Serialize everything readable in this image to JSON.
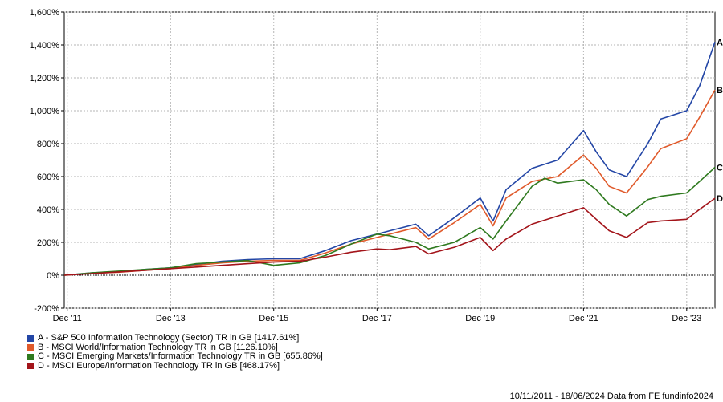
{
  "chart_data": {
    "type": "line",
    "x_start": "2011-11-10",
    "x_end": "2024-06-18",
    "x_ticks": [
      {
        "label": "Dec '11",
        "date": "2011-12-01"
      },
      {
        "label": "Dec '13",
        "date": "2013-12-01"
      },
      {
        "label": "Dec '15",
        "date": "2015-12-01"
      },
      {
        "label": "Dec '17",
        "date": "2017-12-01"
      },
      {
        "label": "Dec '19",
        "date": "2019-12-01"
      },
      {
        "label": "Dec '21",
        "date": "2021-12-01"
      },
      {
        "label": "Dec '23",
        "date": "2023-12-01"
      }
    ],
    "y_ticks": [
      {
        "label": "-200%",
        "value": -200
      },
      {
        "label": "0%",
        "value": 0
      },
      {
        "label": "200%",
        "value": 200
      },
      {
        "label": "400%",
        "value": 400
      },
      {
        "label": "600%",
        "value": 600
      },
      {
        "label": "800%",
        "value": 800
      },
      {
        "label": "1,000%",
        "value": 1000
      },
      {
        "label": "1,200%",
        "value": 1200
      },
      {
        "label": "1,400%",
        "value": 1400
      },
      {
        "label": "1,600%",
        "value": 1600
      }
    ],
    "ylim": [
      -200,
      1600
    ],
    "grid": true,
    "legend_position": "bottom-left",
    "series": [
      {
        "id": "A",
        "name": "A - S&P 500 Information Technology (Sector) TR in GB [1417.61%]",
        "color": "#2346a6",
        "points": [
          [
            "2011-11-10",
            0
          ],
          [
            "2012-06-01",
            15
          ],
          [
            "2012-12-01",
            20
          ],
          [
            "2013-06-01",
            35
          ],
          [
            "2013-12-01",
            45
          ],
          [
            "2014-06-01",
            65
          ],
          [
            "2014-12-01",
            85
          ],
          [
            "2015-06-01",
            95
          ],
          [
            "2015-12-01",
            100
          ],
          [
            "2016-06-01",
            100
          ],
          [
            "2016-12-01",
            150
          ],
          [
            "2017-06-01",
            210
          ],
          [
            "2017-12-01",
            250
          ],
          [
            "2018-03-01",
            270
          ],
          [
            "2018-09-01",
            310
          ],
          [
            "2018-12-01",
            240
          ],
          [
            "2019-06-01",
            350
          ],
          [
            "2019-12-01",
            470
          ],
          [
            "2020-03-01",
            330
          ],
          [
            "2020-06-01",
            520
          ],
          [
            "2020-12-01",
            650
          ],
          [
            "2021-06-01",
            700
          ],
          [
            "2021-12-01",
            880
          ],
          [
            "2022-03-01",
            750
          ],
          [
            "2022-06-01",
            640
          ],
          [
            "2022-10-01",
            600
          ],
          [
            "2023-03-01",
            800
          ],
          [
            "2023-06-01",
            950
          ],
          [
            "2023-12-01",
            1000
          ],
          [
            "2024-03-01",
            1150
          ],
          [
            "2024-06-18",
            1418
          ]
        ]
      },
      {
        "id": "B",
        "name": "B - MSCI World/Information Technology TR in GB [1126.10%]",
        "color": "#e05a2b",
        "points": [
          [
            "2011-11-10",
            0
          ],
          [
            "2012-06-01",
            12
          ],
          [
            "2012-12-01",
            18
          ],
          [
            "2013-06-01",
            30
          ],
          [
            "2013-12-01",
            40
          ],
          [
            "2014-06-01",
            60
          ],
          [
            "2014-12-01",
            75
          ],
          [
            "2015-06-01",
            85
          ],
          [
            "2015-12-01",
            90
          ],
          [
            "2016-06-01",
            90
          ],
          [
            "2016-12-01",
            135
          ],
          [
            "2017-06-01",
            190
          ],
          [
            "2017-12-01",
            230
          ],
          [
            "2018-03-01",
            250
          ],
          [
            "2018-09-01",
            290
          ],
          [
            "2018-12-01",
            220
          ],
          [
            "2019-06-01",
            320
          ],
          [
            "2019-12-01",
            430
          ],
          [
            "2020-03-01",
            300
          ],
          [
            "2020-06-01",
            470
          ],
          [
            "2020-12-01",
            570
          ],
          [
            "2021-06-01",
            600
          ],
          [
            "2021-12-01",
            730
          ],
          [
            "2022-03-01",
            650
          ],
          [
            "2022-06-01",
            540
          ],
          [
            "2022-10-01",
            500
          ],
          [
            "2023-03-01",
            660
          ],
          [
            "2023-06-01",
            770
          ],
          [
            "2023-12-01",
            830
          ],
          [
            "2024-03-01",
            960
          ],
          [
            "2024-06-18",
            1126
          ]
        ]
      },
      {
        "id": "C",
        "name": "C - MSCI Emerging Markets/Information Technology TR in GB [655.86%]",
        "color": "#2f7a1f",
        "points": [
          [
            "2011-11-10",
            0
          ],
          [
            "2012-06-01",
            15
          ],
          [
            "2012-12-01",
            25
          ],
          [
            "2013-06-01",
            35
          ],
          [
            "2013-12-01",
            45
          ],
          [
            "2014-06-01",
            70
          ],
          [
            "2014-12-01",
            80
          ],
          [
            "2015-06-01",
            90
          ],
          [
            "2015-12-01",
            60
          ],
          [
            "2016-06-01",
            75
          ],
          [
            "2016-12-01",
            120
          ],
          [
            "2017-06-01",
            190
          ],
          [
            "2017-12-01",
            250
          ],
          [
            "2018-03-01",
            240
          ],
          [
            "2018-09-01",
            200
          ],
          [
            "2018-12-01",
            160
          ],
          [
            "2019-06-01",
            200
          ],
          [
            "2019-12-01",
            290
          ],
          [
            "2020-03-01",
            220
          ],
          [
            "2020-06-01",
            330
          ],
          [
            "2020-12-01",
            540
          ],
          [
            "2021-03-01",
            590
          ],
          [
            "2021-06-01",
            560
          ],
          [
            "2021-12-01",
            580
          ],
          [
            "2022-03-01",
            520
          ],
          [
            "2022-06-01",
            430
          ],
          [
            "2022-10-01",
            360
          ],
          [
            "2023-03-01",
            460
          ],
          [
            "2023-06-01",
            480
          ],
          [
            "2023-12-01",
            500
          ],
          [
            "2024-03-01",
            570
          ],
          [
            "2024-06-18",
            656
          ]
        ]
      },
      {
        "id": "D",
        "name": "D - MSCI Europe/Information Technology TR in GB [468.17%]",
        "color": "#a3141a",
        "points": [
          [
            "2011-11-10",
            0
          ],
          [
            "2012-06-01",
            10
          ],
          [
            "2012-12-01",
            20
          ],
          [
            "2013-06-01",
            30
          ],
          [
            "2013-12-01",
            40
          ],
          [
            "2014-06-01",
            50
          ],
          [
            "2014-12-01",
            60
          ],
          [
            "2015-06-01",
            70
          ],
          [
            "2015-12-01",
            80
          ],
          [
            "2016-06-01",
            85
          ],
          [
            "2016-12-01",
            110
          ],
          [
            "2017-06-01",
            140
          ],
          [
            "2017-12-01",
            160
          ],
          [
            "2018-03-01",
            155
          ],
          [
            "2018-09-01",
            175
          ],
          [
            "2018-12-01",
            130
          ],
          [
            "2019-06-01",
            170
          ],
          [
            "2019-12-01",
            230
          ],
          [
            "2020-03-01",
            150
          ],
          [
            "2020-06-01",
            220
          ],
          [
            "2020-12-01",
            310
          ],
          [
            "2021-06-01",
            360
          ],
          [
            "2021-12-01",
            410
          ],
          [
            "2022-03-01",
            340
          ],
          [
            "2022-06-01",
            270
          ],
          [
            "2022-10-01",
            230
          ],
          [
            "2023-03-01",
            320
          ],
          [
            "2023-06-01",
            330
          ],
          [
            "2023-12-01",
            340
          ],
          [
            "2024-03-01",
            400
          ],
          [
            "2024-06-18",
            468
          ]
        ]
      }
    ]
  },
  "footer": "10/11/2011 - 18/06/2024 Data from FE fundinfo2024"
}
